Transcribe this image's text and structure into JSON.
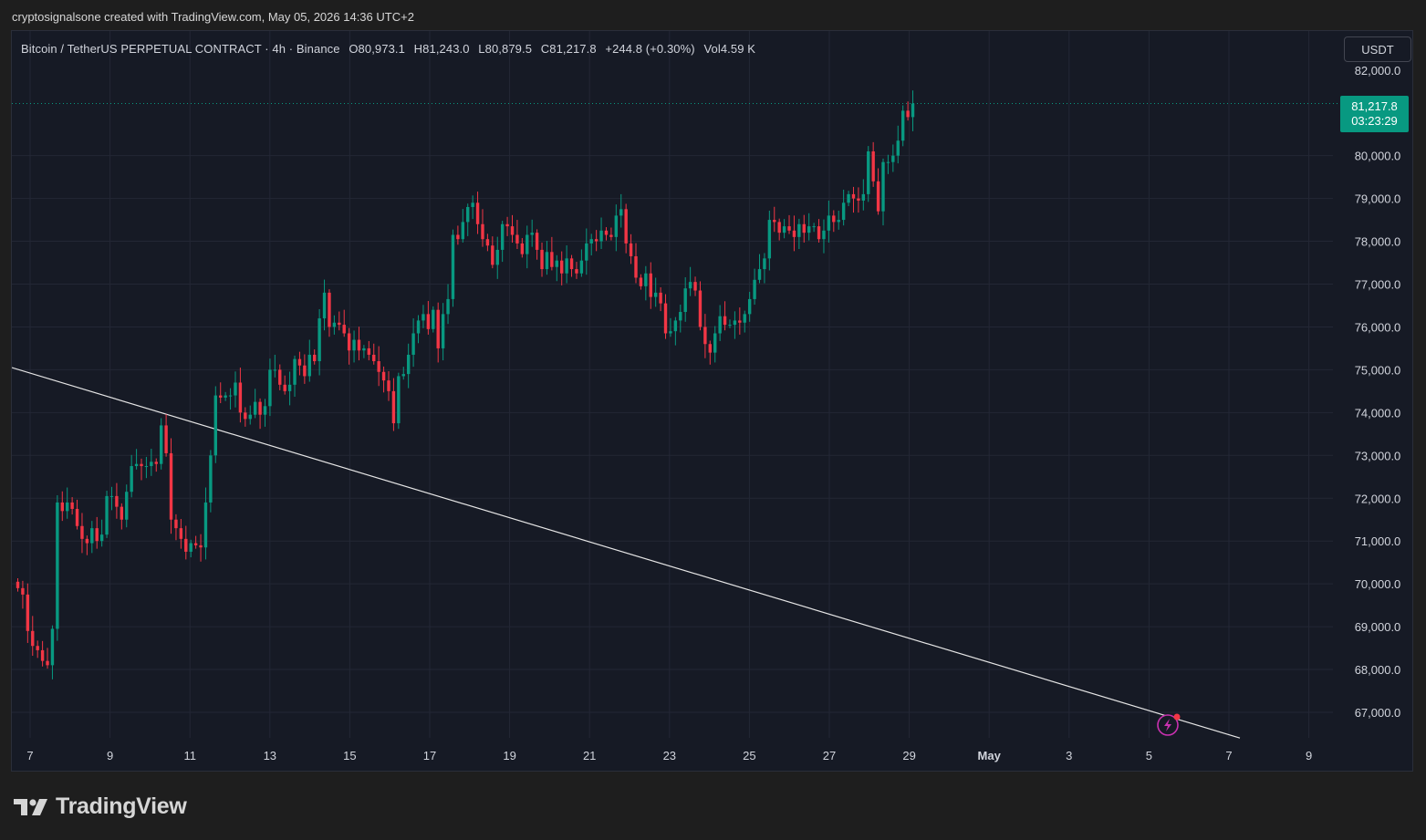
{
  "watermark": "cryptosignalsone created with TradingView.com, May 05, 2026 14:36 UTC+2",
  "brand": "TradingView",
  "header": {
    "symbol": "Bitcoin / TetherUS PERPETUAL CONTRACT · 4h · Binance",
    "open_label": "O",
    "open": "80,973.1",
    "high_label": "H",
    "high": "81,243.0",
    "low_label": "L",
    "low": "80,879.5",
    "close_label": "C",
    "close": "81,217.8",
    "change": "+244.8 (+0.30%)",
    "volume_label": "Vol",
    "volume": "4.59 K"
  },
  "currency_button": "USDT",
  "last_price": {
    "price": "81,217.8",
    "countdown": "03:23:29",
    "color": "#089981"
  },
  "colors": {
    "up": "#089981",
    "down": "#f23645",
    "background": "#161a25",
    "grid": "#232735",
    "trendline": "#e6e6e6"
  },
  "chart_data": {
    "type": "candlestick",
    "y_ticks": [
      67000,
      68000,
      69000,
      70000,
      71000,
      72000,
      73000,
      74000,
      75000,
      76000,
      77000,
      78000,
      79000,
      80000,
      82000
    ],
    "y_tick_labels": [
      "67,000.0",
      "68,000.0",
      "69,000.0",
      "70,000.0",
      "71,000.0",
      "72,000.0",
      "73,000.0",
      "74,000.0",
      "75,000.0",
      "76,000.0",
      "77,000.0",
      "78,000.0",
      "79,000.0",
      "80,000.0",
      "82,000.0"
    ],
    "x_labels": [
      "7",
      "9",
      "11",
      "13",
      "15",
      "17",
      "19",
      "21",
      "23",
      "25",
      "27",
      "29",
      "May",
      "3",
      "5",
      "7",
      "9"
    ],
    "candles_4h_closes": [
      69900,
      69750,
      68900,
      68550,
      68450,
      68200,
      68100,
      68950,
      71900,
      71700,
      71900,
      71750,
      71350,
      71050,
      70950,
      71300,
      71000,
      71150,
      72050,
      72050,
      71800,
      71500,
      72150,
      72750,
      72800,
      72750,
      72750,
      72850,
      72800,
      73700,
      73050,
      71500,
      71300,
      71050,
      70750,
      70950,
      70900,
      70850,
      71900,
      73000,
      74400,
      74350,
      74400,
      74400,
      74700,
      74000,
      73850,
      73950,
      74250,
      73950,
      74150,
      75000,
      75000,
      74650,
      74500,
      74650,
      75250,
      75100,
      74850,
      75350,
      75200,
      76200,
      76800,
      76000,
      76100,
      76050,
      75850,
      75450,
      75700,
      75450,
      75500,
      75350,
      75200,
      74950,
      74750,
      74500,
      73750,
      74850,
      74900,
      75350,
      75850,
      76150,
      76300,
      75950,
      76400,
      75500,
      76300,
      76650,
      78150,
      78050,
      78450,
      78800,
      78900,
      78400,
      78050,
      77900,
      77450,
      77800,
      78400,
      78350,
      78150,
      77950,
      77700,
      78150,
      78200,
      77800,
      77350,
      77750,
      77400,
      77550,
      77250,
      77600,
      77350,
      77250,
      77550,
      77950,
      78050,
      78000,
      78250,
      78150,
      78100,
      78600,
      78750,
      77950,
      77650,
      77150,
      76950,
      77250,
      76700,
      76800,
      76550,
      75850,
      75900,
      76150,
      76350,
      76900,
      77050,
      76850,
      76000,
      75600,
      75400,
      75850,
      76250,
      76050,
      76050,
      76150,
      76100,
      76300,
      76650,
      77100,
      77350,
      77600,
      78500,
      78450,
      78200,
      78350,
      78250,
      78100,
      78400,
      78200,
      78350,
      78350,
      78050,
      78250,
      78600,
      78450,
      78500,
      78900,
      79100,
      79000,
      78950,
      79100,
      80100,
      79400,
      78700,
      79850,
      79850,
      80000,
      80350,
      81050,
      80900,
      81217.8
    ],
    "trendline": {
      "from": {
        "date": "Apr 6",
        "price": 75050
      },
      "to": {
        "date": "May 7",
        "price": 66400
      }
    },
    "last_close": 81217.8
  }
}
